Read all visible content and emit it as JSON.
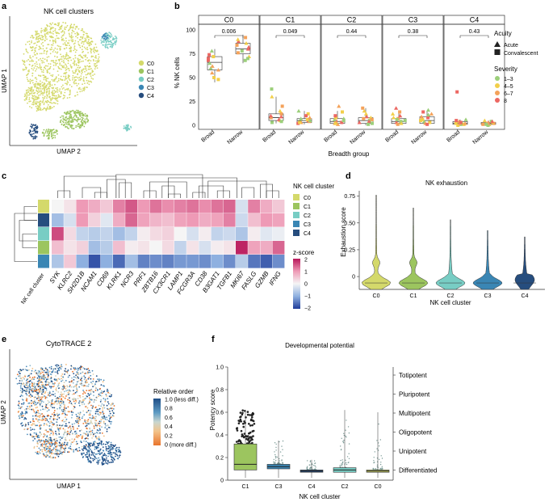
{
  "panel_labels": {
    "a": "a",
    "b": "b",
    "c": "c",
    "d": "d",
    "e": "e",
    "f": "f"
  },
  "colors": {
    "C0": "#d4d96b",
    "C1": "#9cc55f",
    "C2": "#78cdc4",
    "C3": "#3a86b4",
    "C4": "#264d7e",
    "sev_1_3": "#9ccf7a",
    "sev_4_5": "#f2cf4a",
    "sev_6_7": "#f4a25a",
    "sev_8": "#ec6762"
  },
  "chart_data": [
    {
      "id": "a",
      "type": "scatter",
      "title": "NK cell clusters",
      "xlabel": "UMAP 2",
      "ylabel": "UMAP 1",
      "legend": [
        "C0",
        "C1",
        "C2",
        "C3",
        "C4"
      ]
    },
    {
      "id": "b",
      "type": "box",
      "ylabel": "% NK cells",
      "xlabel": "Breadth group",
      "ylim": [
        0,
        100
      ],
      "yticks": [
        "0",
        "25",
        "50",
        "75",
        "100"
      ],
      "categories": [
        "Broad",
        "Narrow"
      ],
      "facets": [
        {
          "name": "C0",
          "pvalue": "0.006",
          "broad": {
            "q1": 58,
            "median": 66,
            "q3": 72,
            "min": 45,
            "max": 80,
            "points": [
              60,
              72,
              55,
              68,
              78,
              50,
              62,
              74,
              65,
              48,
              58,
              70
            ]
          },
          "narrow": {
            "q1": 75,
            "median": 80,
            "q3": 86,
            "min": 65,
            "max": 95,
            "points": [
              72,
              84,
              88,
              78,
              90,
              76,
              82,
              70,
              86,
              92,
              80,
              68
            ]
          }
        },
        {
          "name": "C1",
          "pvalue": "0.049",
          "broad": {
            "q1": 5,
            "median": 8,
            "q3": 12,
            "min": 2,
            "max": 30,
            "points": [
              5,
              8,
              10,
              38,
              30,
              12,
              6,
              3,
              15,
              20,
              9,
              4
            ]
          },
          "narrow": {
            "q1": 3,
            "median": 5,
            "q3": 7,
            "min": 1,
            "max": 15,
            "points": [
              3,
              5,
              7,
              12,
              4,
              2,
              15,
              6,
              8,
              10,
              5,
              3
            ]
          }
        },
        {
          "name": "C2",
          "pvalue": "0.44",
          "broad": {
            "q1": 2,
            "median": 4,
            "q3": 7,
            "min": 0,
            "max": 15,
            "points": [
              2,
              4,
              6,
              14,
              20,
              3,
              5,
              8,
              1,
              10,
              7,
              2
            ]
          },
          "narrow": {
            "q1": 2,
            "median": 5,
            "q3": 8,
            "min": 0,
            "max": 18,
            "points": [
              3,
              5,
              8,
              18,
              4,
              2,
              12,
              6,
              9,
              1,
              15,
              7
            ]
          }
        },
        {
          "name": "C3",
          "pvalue": "0.38",
          "broad": {
            "q1": 2,
            "median": 4,
            "q3": 7,
            "min": 0,
            "max": 15,
            "points": [
              3,
              5,
              8,
              14,
              18,
              4,
              2,
              7,
              10,
              6,
              12,
              1
            ]
          },
          "narrow": {
            "q1": 2,
            "median": 5,
            "q3": 9,
            "min": 0,
            "max": 15,
            "points": [
              4,
              6,
              9,
              14,
              16,
              3,
              2,
              8,
              11,
              5,
              12,
              1
            ]
          }
        },
        {
          "name": "C4",
          "pvalue": "0.43",
          "broad": {
            "q1": 1,
            "median": 2,
            "q3": 4,
            "min": 0,
            "max": 6,
            "points": [
              1,
              2,
              4,
              35,
              3,
              1,
              2,
              5,
              6,
              0,
              2,
              3
            ]
          },
          "narrow": {
            "q1": 1,
            "median": 2,
            "q3": 3,
            "min": 0,
            "max": 5,
            "points": [
              1,
              2,
              3,
              4,
              5,
              1,
              2,
              0,
              3,
              2,
              4,
              1
            ]
          }
        }
      ],
      "legend_acuity": {
        "title": "Acuity",
        "items": [
          "Acute",
          "Convalescent"
        ]
      },
      "legend_severity": {
        "title": "Severity",
        "items": [
          "1–3",
          "4–5",
          "6–7",
          "8"
        ]
      }
    },
    {
      "id": "c",
      "type": "heatmap",
      "genes": [
        "SYK",
        "KLRC2",
        "SH2D1B",
        "NCAM1",
        "CD69",
        "KLRK1",
        "NCR3",
        "PRF1",
        "ZBTB16",
        "CX3CR1",
        "LAMP1",
        "FCGR3A",
        "CD38",
        "B3GAT1",
        "TGFB1",
        "MKI67",
        "FASLG",
        "GZMB",
        "IFNG"
      ],
      "row_clusters": [
        "C0",
        "C4",
        "C2",
        "C1",
        "C3"
      ],
      "row_label": "NK cell cluster",
      "values": [
        [
          0.0,
          0.2,
          1.0,
          0.8,
          0.5,
          1.2,
          1.5,
          1.0,
          1.3,
          1.1,
          1.2,
          1.3,
          1.1,
          1.3,
          1.4,
          -0.3,
          1.2,
          0.8,
          0.5
        ],
        [
          -0.8,
          -0.3,
          1.0,
          0.4,
          -0.2,
          0.8,
          1.4,
          0.9,
          0.7,
          0.6,
          0.9,
          1.0,
          0.8,
          0.9,
          1.2,
          -0.4,
          0.6,
          1.0,
          0.9
        ],
        [
          1.6,
          0.3,
          -0.5,
          -0.6,
          -0.5,
          -0.8,
          -0.5,
          0.1,
          0.3,
          0.4,
          0.0,
          -0.3,
          0.1,
          -0.5,
          -0.4,
          -0.7,
          0.1,
          -0.2,
          -0.1
        ],
        [
          0.6,
          0.2,
          0.4,
          -0.8,
          -0.6,
          0.6,
          0.1,
          0.2,
          0.0,
          0.3,
          -0.5,
          0.2,
          -0.3,
          0.1,
          0.2,
          1.9,
          0.9,
          0.8,
          1.4
        ],
        [
          -0.7,
          0.5,
          -1.0,
          -1.8,
          -1.0,
          -1.6,
          -0.8,
          -1.4,
          -1.3,
          -1.4,
          -1.2,
          -1.2,
          -1.3,
          -1.0,
          -1.3,
          -0.6,
          -1.5,
          -1.7,
          -1.3
        ]
      ],
      "legend_cluster_title": "NK cell cluster",
      "legend_cluster_items": [
        "C0",
        "C1",
        "C2",
        "C3",
        "C4"
      ],
      "zscore_title": "z-score",
      "zscore_ticks": [
        "2",
        "1",
        "0",
        "−1",
        "−2"
      ]
    },
    {
      "id": "d",
      "type": "violin",
      "title": "NK exhaustion",
      "ylabel": "Exhaustion score",
      "xlabel": "NK cell cluster",
      "ylim": [
        -0.12,
        0.8
      ],
      "yticks": [
        "0.75",
        "0.50",
        "0.25",
        "0"
      ],
      "categories": [
        "C0",
        "C1",
        "C2",
        "C3",
        "C4"
      ],
      "max": [
        0.76,
        0.64,
        0.53,
        0.43,
        0.37
      ]
    },
    {
      "id": "e",
      "type": "scatter",
      "title": "CytoTRACE 2",
      "xlabel": "UMAP 1",
      "ylabel": "UMAP 2",
      "legend_title": "Relative order",
      "legend_ticks": [
        "1.0 (less diff.)",
        "0.8",
        "0.6",
        "0.4",
        "0.2",
        "0 (more diff.)"
      ]
    },
    {
      "id": "f",
      "type": "box",
      "title": "Developmental potential",
      "ylabel": "Potency score",
      "xlabel": "NK cell cluster",
      "ylim": [
        0,
        1.0
      ],
      "yticks": [
        "1.0",
        "0.8",
        "0.6",
        "0.4",
        "0.2",
        "0"
      ],
      "categories": [
        "C1",
        "C3",
        "C4",
        "C2",
        "C0"
      ],
      "boxes": [
        {
          "q1": 0.09,
          "median": 0.14,
          "q3": 0.32,
          "max": 0.62
        },
        {
          "q1": 0.1,
          "median": 0.12,
          "q3": 0.14,
          "max": 0.35
        },
        {
          "q1": 0.07,
          "median": 0.08,
          "q3": 0.09,
          "max": 0.18
        },
        {
          "q1": 0.07,
          "median": 0.09,
          "q3": 0.11,
          "max": 0.62
        },
        {
          "q1": 0.07,
          "median": 0.08,
          "q3": 0.09,
          "max": 0.6
        }
      ],
      "potency_labels": [
        "Totipotent",
        "Pluripotent",
        "Multipotent",
        "Oligopotent",
        "Unipotent",
        "Differentiated"
      ]
    }
  ]
}
